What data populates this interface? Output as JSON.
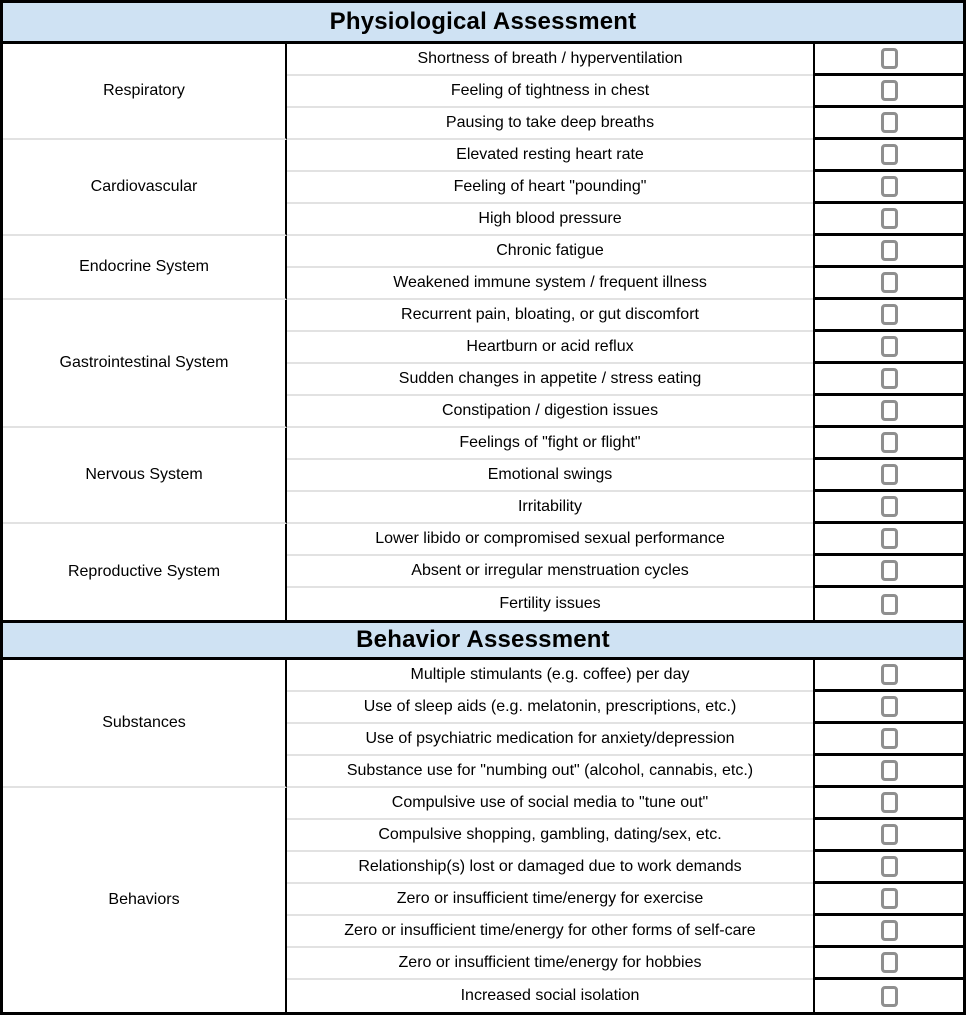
{
  "table": {
    "sections": [
      {
        "title": "Physiological Assessment",
        "groups": [
          {
            "category": "Respiratory",
            "items": [
              "Shortness of breath / hyperventilation",
              "Feeling of tightness in chest",
              "Pausing to take deep breaths"
            ]
          },
          {
            "category": "Cardiovascular",
            "items": [
              "Elevated resting heart rate",
              "Feeling of heart \"pounding\"",
              "High blood pressure"
            ]
          },
          {
            "category": "Endocrine System",
            "items": [
              "Chronic fatigue",
              "Weakened immune system / frequent illness"
            ]
          },
          {
            "category": "Gastrointestinal System",
            "items": [
              "Recurrent pain, bloating, or gut discomfort",
              "Heartburn or acid reflux",
              "Sudden changes in appetite / stress eating",
              "Constipation / digestion issues"
            ]
          },
          {
            "category": "Nervous System",
            "items": [
              "Feelings of \"fight or flight\"",
              "Emotional swings",
              "Irritability"
            ]
          },
          {
            "category": "Reproductive System",
            "items": [
              "Lower libido or compromised sexual performance",
              "Absent or irregular menstruation cycles",
              "Fertility issues"
            ]
          }
        ]
      },
      {
        "title": "Behavior Assessment",
        "groups": [
          {
            "category": "Substances",
            "items": [
              "Multiple stimulants (e.g. coffee) per day",
              "Use of sleep aids (e.g. melatonin, prescriptions, etc.)",
              "Use of psychiatric medication for anxiety/depression",
              "Substance use for \"numbing out\" (alcohol, cannabis, etc.)"
            ]
          },
          {
            "category": "Behaviors",
            "items": [
              "Compulsive use of social media to \"tune out\"",
              "Compulsive shopping, gambling, dating/sex, etc.",
              "Relationship(s) lost or damaged due to work demands",
              "Zero or insufficient time/energy for exercise",
              "Zero or insufficient time/energy for other forms of self-care",
              "Zero or insufficient time/energy for hobbies",
              "Increased social isolation"
            ]
          }
        ]
      }
    ],
    "checkboxes_all_unchecked": true
  },
  "colors": {
    "header_background": "#cfe2f3",
    "grid_border": "#000000",
    "row_separator": "#e2e2e2",
    "checkbox_border": "#8f8f8f"
  }
}
